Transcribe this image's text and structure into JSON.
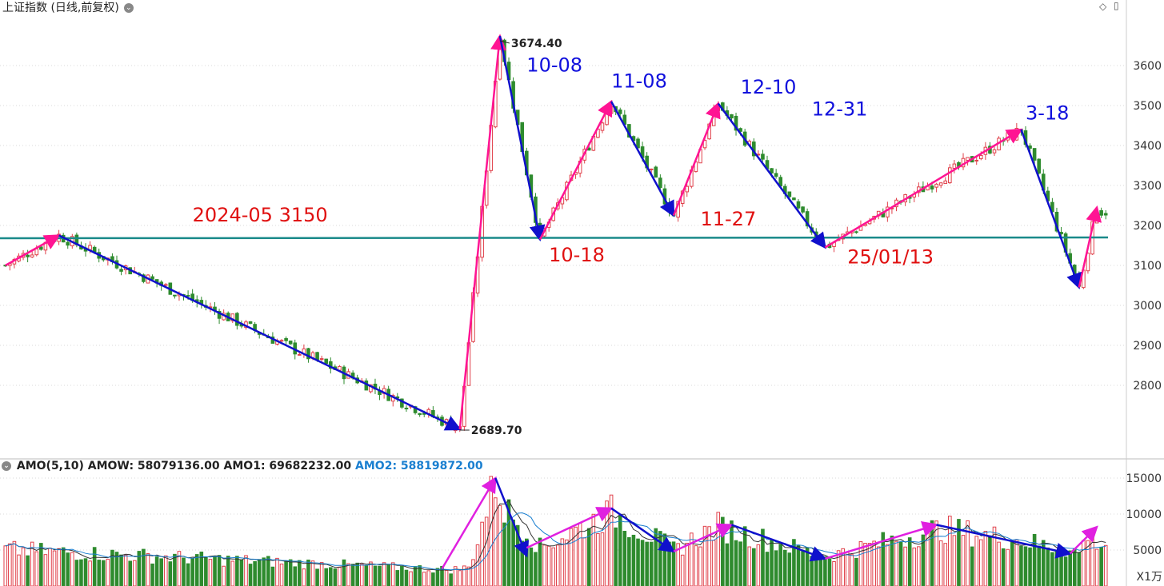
{
  "header": {
    "title": "上证指数 (日线,前复权)",
    "vol_name": "AMO(5,10)",
    "vol_amow_label": "AMOW:",
    "vol_amow_value": "58079136.00",
    "vol_amo1_label": "AMO1:",
    "vol_amo1_value": "69682232.00",
    "vol_amo2_label": "AMO2:",
    "vol_amo2_value": "58819872.00",
    "unit_label": "X1万"
  },
  "colors": {
    "up": "#e0404a",
    "down": "#2e8b2e",
    "support_line": "#1a8a8a",
    "trend_down": "#1010cc",
    "trend_up": "#ff1493",
    "trend_up_vol": "#e020e0",
    "label_blue": "#1010dd",
    "label_red": "#e01010",
    "grid": "#d8d8d8",
    "amo2": "#1a7fd0"
  },
  "chart_data": [
    {
      "type": "candlestick",
      "title": "上证指数 (日线,前复权)",
      "ylim": [
        2620,
        3720
      ],
      "yticks": [
        2800,
        2900,
        3000,
        3100,
        3200,
        3300,
        3400,
        3500,
        3600
      ],
      "max_label": "3674.40",
      "min_label": "2689.70",
      "key_points": [
        {
          "x": 0,
          "y": 3100
        },
        {
          "x": 12,
          "y": 3175
        },
        {
          "x": 102,
          "y": 2690
        },
        {
          "x": 111,
          "y": 3674
        },
        {
          "x": 120,
          "y": 3165
        },
        {
          "x": 136,
          "y": 3510
        },
        {
          "x": 150,
          "y": 3225
        },
        {
          "x": 160,
          "y": 3505
        },
        {
          "x": 184,
          "y": 3145
        },
        {
          "x": 228,
          "y": 3440
        },
        {
          "x": 241,
          "y": 3045
        },
        {
          "x": 245,
          "y": 3245
        },
        {
          "x": 246,
          "y": 3235
        }
      ],
      "support_level": 3168,
      "trend_lines": [
        {
          "from": [
            0,
            3100
          ],
          "to": [
            12,
            3175
          ],
          "dir": "up"
        },
        {
          "from": [
            12,
            3175
          ],
          "to": [
            102,
            2690
          ],
          "dir": "down"
        },
        {
          "from": [
            102,
            2690
          ],
          "to": [
            111,
            3674
          ],
          "dir": "up"
        },
        {
          "from": [
            111,
            3674
          ],
          "to": [
            120,
            3165
          ],
          "dir": "down"
        },
        {
          "from": [
            120,
            3165
          ],
          "to": [
            136,
            3510
          ],
          "dir": "up"
        },
        {
          "from": [
            136,
            3510
          ],
          "to": [
            150,
            3225
          ],
          "dir": "down"
        },
        {
          "from": [
            150,
            3225
          ],
          "to": [
            160,
            3505
          ],
          "dir": "up"
        },
        {
          "from": [
            160,
            3505
          ],
          "to": [
            184,
            3145
          ],
          "dir": "down"
        },
        {
          "from": [
            184,
            3145
          ],
          "to": [
            228,
            3440
          ],
          "dir": "up"
        },
        {
          "from": [
            228,
            3440
          ],
          "to": [
            241,
            3045
          ],
          "dir": "down"
        },
        {
          "from": [
            241,
            3045
          ],
          "to": [
            245,
            3245
          ],
          "dir": "up"
        }
      ],
      "annotations": [
        {
          "text": "2024-05  3150",
          "x": 42,
          "y": 3210,
          "color": "red"
        },
        {
          "text": "10-08",
          "x": 117,
          "y": 3585,
          "color": "blue"
        },
        {
          "text": "10-18",
          "x": 122,
          "y": 3110,
          "color": "red"
        },
        {
          "text": "11-08",
          "x": 136,
          "y": 3545,
          "color": "blue"
        },
        {
          "text": "11-27",
          "x": 156,
          "y": 3200,
          "color": "red"
        },
        {
          "text": "12-10",
          "x": 165,
          "y": 3530,
          "color": "blue"
        },
        {
          "text": "12-31",
          "x": 181,
          "y": 3475,
          "color": "blue"
        },
        {
          "text": "25/01/13",
          "x": 189,
          "y": 3105,
          "color": "red"
        },
        {
          "text": "3-18",
          "x": 229,
          "y": 3465,
          "color": "blue"
        }
      ]
    },
    {
      "type": "bar",
      "title": "AMO(5,10)",
      "ylim": [
        0,
        17000
      ],
      "yticks": [
        5000,
        10000,
        15000
      ],
      "key_points": [
        {
          "x": 0,
          "y": 5200
        },
        {
          "x": 100,
          "y": 2300
        },
        {
          "x": 104,
          "y": 2600
        },
        {
          "x": 110,
          "y": 15000
        },
        {
          "x": 112,
          "y": 11000
        },
        {
          "x": 117,
          "y": 8000
        },
        {
          "x": 120,
          "y": 5500
        },
        {
          "x": 136,
          "y": 10500
        },
        {
          "x": 150,
          "y": 5200
        },
        {
          "x": 160,
          "y": 8500
        },
        {
          "x": 184,
          "y": 4200
        },
        {
          "x": 210,
          "y": 8200
        },
        {
          "x": 228,
          "y": 6500
        },
        {
          "x": 241,
          "y": 4800
        },
        {
          "x": 243,
          "y": 7500
        },
        {
          "x": 246,
          "y": 6000
        }
      ],
      "trend_lines": [
        {
          "from": [
            98,
            2400
          ],
          "to": [
            110,
            15000
          ],
          "dir": "up"
        },
        {
          "from": [
            110,
            15000
          ],
          "to": [
            117,
            4200
          ],
          "dir": "down"
        },
        {
          "from": [
            117,
            5300
          ],
          "to": [
            136,
            10800
          ],
          "dir": "up"
        },
        {
          "from": [
            136,
            10800
          ],
          "to": [
            150,
            4800
          ],
          "dir": "down"
        },
        {
          "from": [
            150,
            4800
          ],
          "to": [
            163,
            8500
          ],
          "dir": "up"
        },
        {
          "from": [
            163,
            8500
          ],
          "to": [
            184,
            3800
          ],
          "dir": "down"
        },
        {
          "from": [
            184,
            3800
          ],
          "to": [
            209,
            8500
          ],
          "dir": "up"
        },
        {
          "from": [
            209,
            8500
          ],
          "to": [
            239,
            4500
          ],
          "dir": "down"
        },
        {
          "from": [
            239,
            4500
          ],
          "to": [
            245,
            8200
          ],
          "dir": "up"
        }
      ]
    }
  ]
}
